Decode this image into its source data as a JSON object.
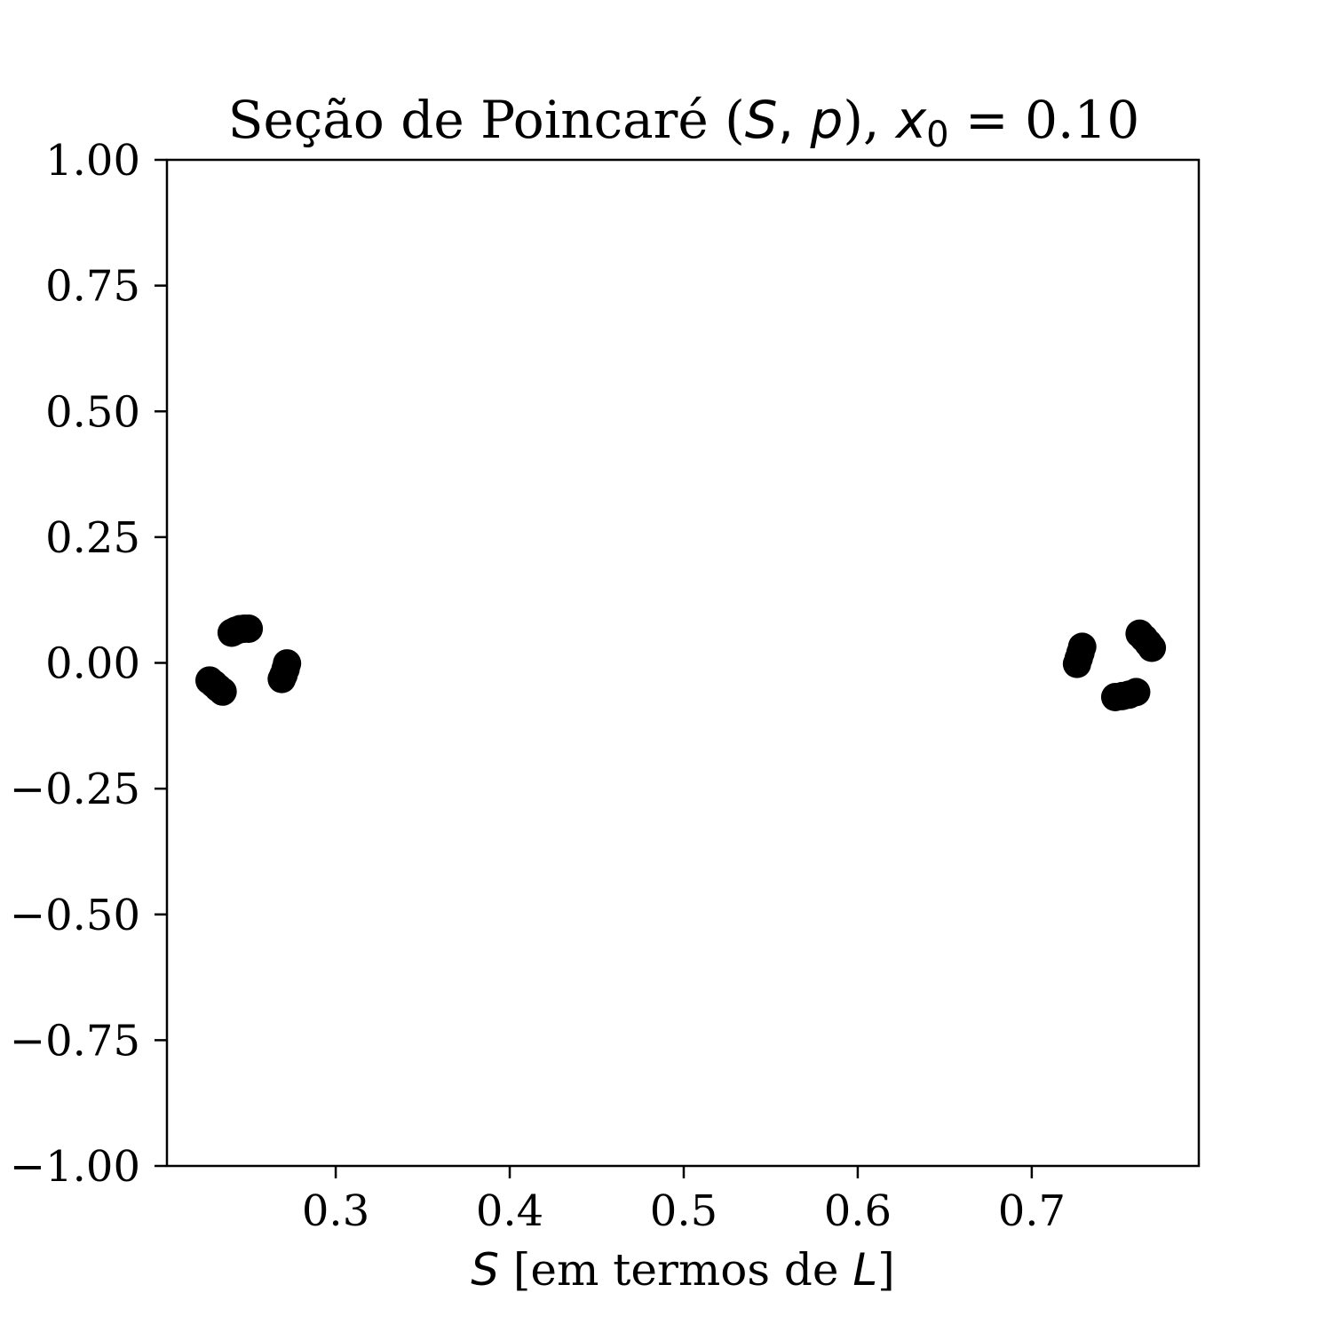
{
  "chart_data": {
    "type": "scatter",
    "title": {
      "prefix": "Seção de Poincaré (",
      "s": "S",
      "comma": ", ",
      "p": "p",
      "close": "), ",
      "x": "x",
      "sub": "0",
      "eq": " = ",
      "value": "0.10"
    },
    "xlabel": {
      "s": "S",
      "mid": " [em termos de ",
      "l": "L",
      "end": "]"
    },
    "xlim": [
      0.203,
      0.796
    ],
    "ylim": [
      -1.0,
      1.0
    ],
    "xticks": [
      0.3,
      0.4,
      0.5,
      0.6,
      0.7
    ],
    "xtick_labels": [
      "0.3",
      "0.4",
      "0.5",
      "0.6",
      "0.7"
    ],
    "yticks": [
      1.0,
      0.75,
      0.5,
      0.25,
      0.0,
      -0.25,
      -0.5,
      -0.75,
      -1.0
    ],
    "ytick_labels": [
      "1.00",
      "0.75",
      "0.50",
      "0.25",
      "0.00",
      "−0.25",
      "−0.50",
      "−0.75",
      "−1.00"
    ],
    "grid": false,
    "marker_color": "#000000",
    "series": [
      {
        "points": [
          {
            "x": 0.2402,
            "y": 0.06
          },
          {
            "x": 0.2425,
            "y": 0.064
          },
          {
            "x": 0.245,
            "y": 0.067
          },
          {
            "x": 0.2475,
            "y": 0.068
          },
          {
            "x": 0.25,
            "y": 0.068
          },
          {
            "x": 0.272,
            "y": -0.001
          },
          {
            "x": 0.2712,
            "y": -0.012
          },
          {
            "x": 0.27,
            "y": -0.024
          },
          {
            "x": 0.269,
            "y": -0.032
          },
          {
            "x": 0.2275,
            "y": -0.035
          },
          {
            "x": 0.23,
            "y": -0.042
          },
          {
            "x": 0.2325,
            "y": -0.05
          },
          {
            "x": 0.235,
            "y": -0.057
          },
          {
            "x": 0.729,
            "y": 0.032
          },
          {
            "x": 0.728,
            "y": 0.02
          },
          {
            "x": 0.727,
            "y": 0.009
          },
          {
            "x": 0.726,
            "y": -0.002
          },
          {
            "x": 0.762,
            "y": 0.058
          },
          {
            "x": 0.7645,
            "y": 0.049
          },
          {
            "x": 0.767,
            "y": 0.039
          },
          {
            "x": 0.769,
            "y": 0.03
          },
          {
            "x": 0.748,
            "y": -0.068
          },
          {
            "x": 0.752,
            "y": -0.066
          },
          {
            "x": 0.756,
            "y": -0.063
          },
          {
            "x": 0.76,
            "y": -0.058
          }
        ]
      }
    ]
  }
}
